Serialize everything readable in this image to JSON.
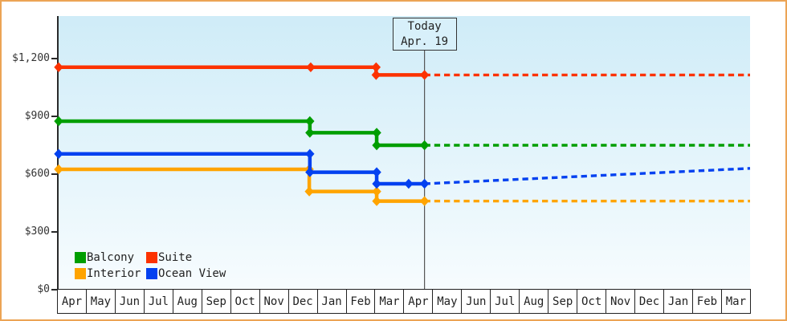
{
  "colors": {
    "frame_border": "#ECA455",
    "plot_bg_top": "#CFECF8",
    "plot_bg_bottom": "#F7FCFE",
    "axis": "#2A2A2A",
    "month_cell_border": "#222222",
    "today_line": "#555555",
    "today_box_bg": "#D8F0FA",
    "text": "#333333"
  },
  "chart_data": {
    "type": "line",
    "subtype": "step-price-history",
    "title": "",
    "xlabel": "",
    "ylabel": "",
    "grid": false,
    "legend_position": "bottom-left",
    "ylim": [
      0,
      1430
    ],
    "x_months": [
      "Apr",
      "May",
      "Jun",
      "Jul",
      "Aug",
      "Sep",
      "Oct",
      "Nov",
      "Dec",
      "Jan",
      "Feb",
      "Mar",
      "Apr",
      "May",
      "Jun",
      "Jul",
      "Aug",
      "Sep",
      "Oct",
      "Nov",
      "Dec",
      "Jan",
      "Feb",
      "Mar"
    ],
    "y_ticks": [
      {
        "label": "$0",
        "value": 0
      },
      {
        "label": "$300",
        "value": 300
      },
      {
        "label": "$600",
        "value": 600
      },
      {
        "label": "$900",
        "value": 900
      },
      {
        "label": "$1,200",
        "value": 1200
      }
    ],
    "today": {
      "label": "Today",
      "date": "Apr. 19",
      "month_index": 12.7
    },
    "series": [
      {
        "name": "Balcony",
        "color": "#009E00",
        "points": [
          [
            0,
            875
          ],
          [
            8.72,
            875
          ],
          [
            8.72,
            815
          ],
          [
            11.04,
            815
          ],
          [
            11.04,
            750
          ],
          [
            12.7,
            750
          ]
        ],
        "forecast": [
          [
            12.7,
            750
          ],
          [
            24,
            750
          ]
        ]
      },
      {
        "name": "Suite",
        "color": "#FC3200",
        "points": [
          [
            0,
            1155
          ],
          [
            8.75,
            1155
          ],
          [
            11.02,
            1155
          ],
          [
            11.02,
            1115
          ],
          [
            12.7,
            1115
          ]
        ],
        "forecast": [
          [
            12.7,
            1115
          ],
          [
            24,
            1115
          ]
        ]
      },
      {
        "name": "Interior",
        "color": "#FFA400",
        "points": [
          [
            0,
            625
          ],
          [
            8.7,
            625
          ],
          [
            8.7,
            510
          ],
          [
            11.04,
            510
          ],
          [
            11.04,
            460
          ],
          [
            12.7,
            460
          ]
        ],
        "forecast": [
          [
            12.7,
            460
          ],
          [
            24,
            460
          ]
        ]
      },
      {
        "name": "Ocean View",
        "color": "#0341F0",
        "points": [
          [
            0,
            705
          ],
          [
            8.72,
            705
          ],
          [
            8.72,
            610
          ],
          [
            11.04,
            610
          ],
          [
            11.04,
            550
          ],
          [
            12.15,
            550
          ],
          [
            12.7,
            550
          ]
        ],
        "forecast": [
          [
            12.7,
            550
          ],
          [
            24,
            630
          ]
        ]
      }
    ]
  }
}
